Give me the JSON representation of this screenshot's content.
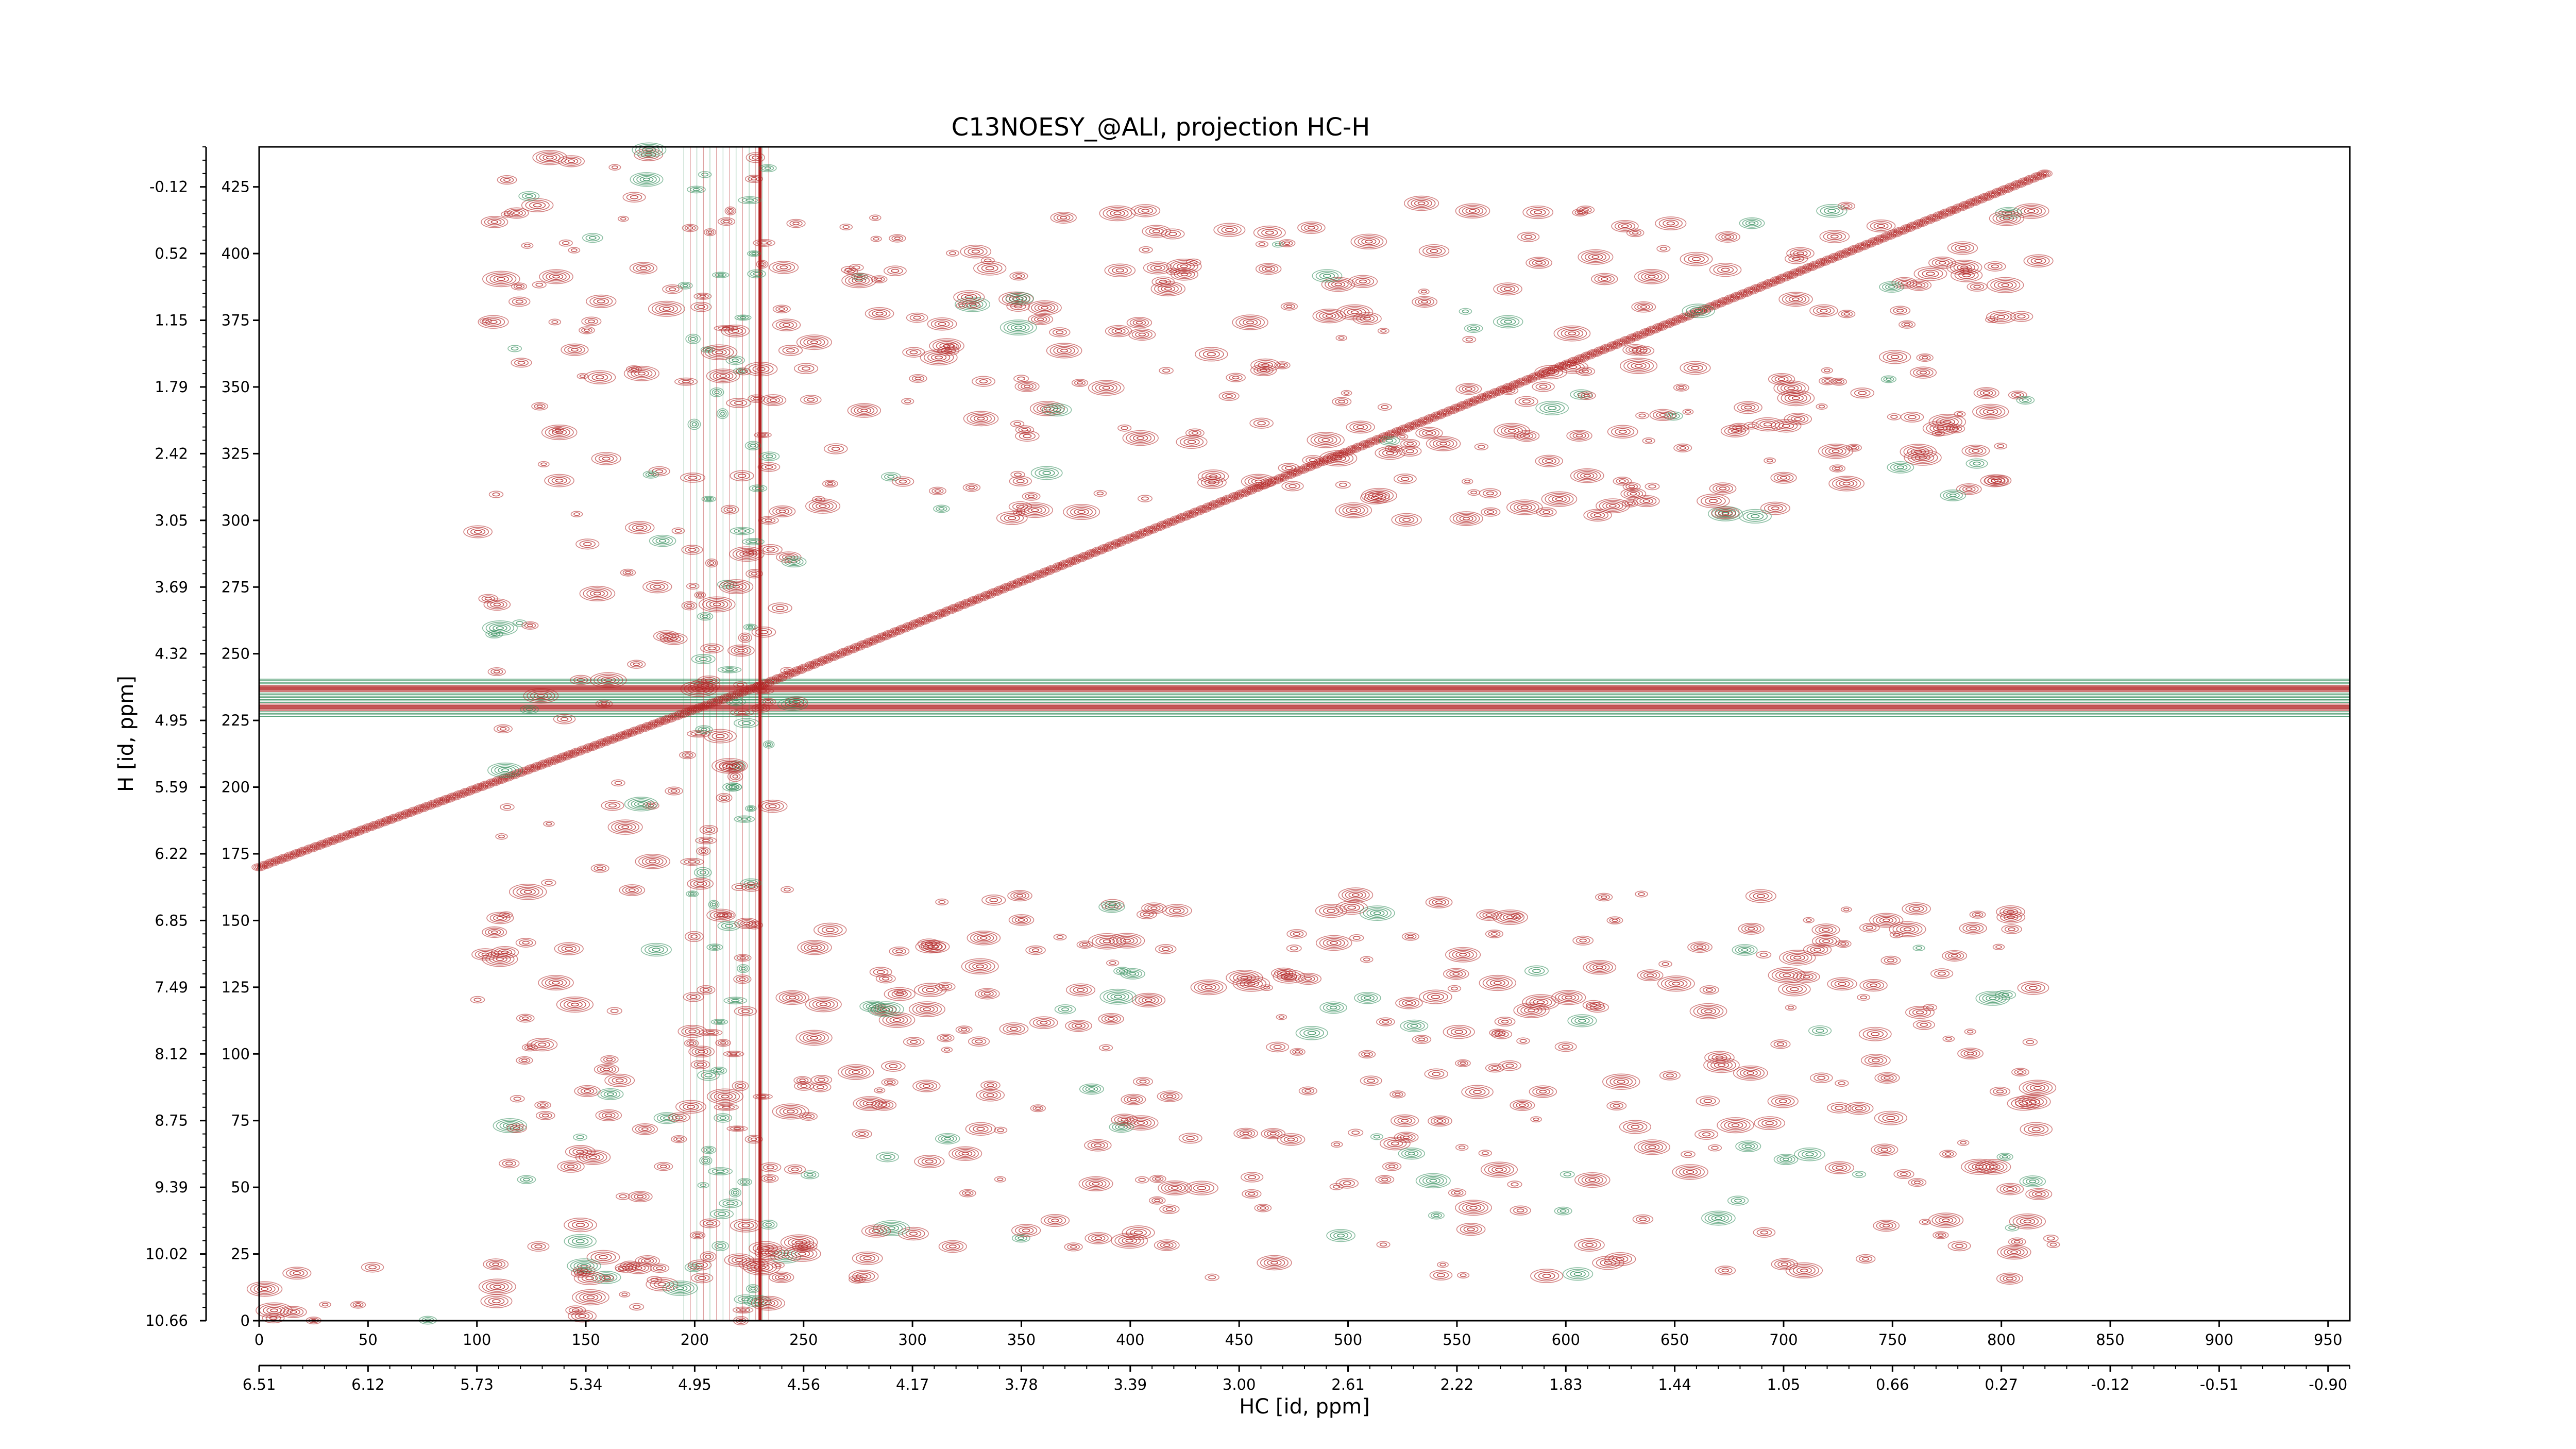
{
  "colors": {
    "positive": "#b22222",
    "negative": "#2e8b57",
    "frame": "#000000"
  },
  "chart_data": {
    "type": "heatmap",
    "title": "C13NOESY_@ALI, projection HC-H",
    "xlabel": "HC [id, ppm]",
    "ylabel": "H [id, ppm]",
    "x_index_range": [
      0,
      960
    ],
    "y_index_range": [
      0,
      440
    ],
    "x_index_ticks": [
      "0",
      "50",
      "100",
      "150",
      "200",
      "250",
      "300",
      "350",
      "400",
      "450",
      "500",
      "550",
      "600",
      "650",
      "700",
      "750",
      "800",
      "850",
      "900",
      "950"
    ],
    "x_ppm_ticks": [
      "6.51",
      "6.12",
      "5.73",
      "5.34",
      "4.95",
      "4.56",
      "4.17",
      "3.78",
      "3.39",
      "3.00",
      "2.61",
      "2.22",
      "1.83",
      "1.44",
      "1.05",
      "0.66",
      "0.27",
      "-0.12",
      "-0.51",
      "-0.90"
    ],
    "y_index_ticks": [
      "0",
      "25",
      "50",
      "75",
      "100",
      "125",
      "150",
      "175",
      "200",
      "225",
      "250",
      "275",
      "300",
      "325",
      "350",
      "375",
      "400",
      "425"
    ],
    "y_ppm_ticks": [
      "10.66",
      "10.02",
      "9.39",
      "8.75",
      "8.12",
      "7.49",
      "6.85",
      "6.22",
      "5.59",
      "4.95",
      "4.32",
      "3.69",
      "3.05",
      "2.42",
      "1.79",
      "1.15",
      "0.52",
      "-0.12"
    ],
    "series": [],
    "features": {
      "diagonal": [
        [
          0,
          170
        ],
        [
          230,
          238
        ],
        [
          820,
          430
        ]
      ],
      "vertical_bands": [
        {
          "from": 195,
          "to": 235,
          "solid_at": 230
        }
      ],
      "horizontal_bands": [
        {
          "y": 237,
          "from": 0,
          "to": 960
        },
        {
          "y": 230,
          "from": 0,
          "to": 960
        }
      ],
      "regions": [
        {
          "x": [
            250,
            820
          ],
          "y": [
            300,
            420
          ],
          "density": 0.55
        },
        {
          "x": [
            240,
            830
          ],
          "y": [
            15,
            160
          ],
          "density": 0.5
        },
        {
          "x": [
            100,
            250
          ],
          "y": [
            0,
            440
          ],
          "density": 0.4
        },
        {
          "x": [
            0,
            250
          ],
          "y": [
            0,
            25
          ],
          "density": 0.6
        }
      ]
    }
  }
}
